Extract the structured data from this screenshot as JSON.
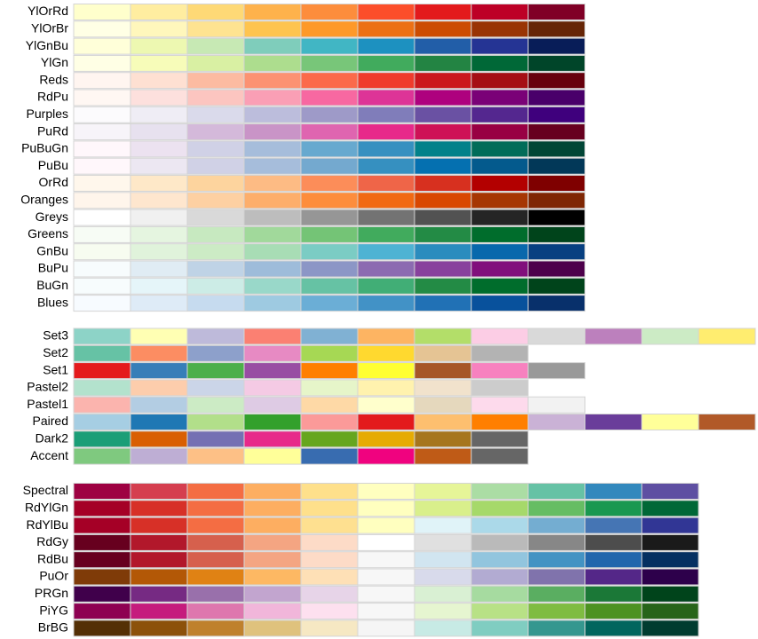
{
  "groups": [
    {
      "palettes": [
        {
          "name": "YlOrRd",
          "colors": [
            "#FFFFCC",
            "#FFEDA0",
            "#FED976",
            "#FEB24C",
            "#FD8D3C",
            "#FC4E2A",
            "#E31A1C",
            "#BD0026",
            "#800026"
          ]
        },
        {
          "name": "YlOrBr",
          "colors": [
            "#FFFFE5",
            "#FFF7BC",
            "#FEE391",
            "#FEC44F",
            "#FE9929",
            "#EC7014",
            "#CC4C02",
            "#993404",
            "#662506"
          ]
        },
        {
          "name": "YlGnBu",
          "colors": [
            "#FFFFD9",
            "#EDF8B1",
            "#C7E9B4",
            "#7FCDBB",
            "#41B6C4",
            "#1D91C0",
            "#225EA8",
            "#253494",
            "#081D58"
          ]
        },
        {
          "name": "YlGn",
          "colors": [
            "#FFFFE5",
            "#F7FCB9",
            "#D9F0A3",
            "#ADDD8E",
            "#78C679",
            "#41AB5D",
            "#238443",
            "#006837",
            "#004529"
          ]
        },
        {
          "name": "Reds",
          "colors": [
            "#FFF5F0",
            "#FEE0D2",
            "#FCBBA1",
            "#FC9272",
            "#FB6A4A",
            "#EF3B2C",
            "#CB181D",
            "#A50F15",
            "#67000D"
          ]
        },
        {
          "name": "RdPu",
          "colors": [
            "#FFF7F3",
            "#FDE0DD",
            "#FCC5C0",
            "#FA9FB5",
            "#F768A1",
            "#DD3497",
            "#AE017E",
            "#7A0177",
            "#49006A"
          ]
        },
        {
          "name": "Purples",
          "colors": [
            "#FCFBFD",
            "#EFEDF5",
            "#DADAEB",
            "#BCBDDC",
            "#9E9AC8",
            "#807DBA",
            "#6A51A3",
            "#54278F",
            "#3F007D"
          ]
        },
        {
          "name": "PuRd",
          "colors": [
            "#F7F4F9",
            "#E7E1EF",
            "#D4B9DA",
            "#C994C7",
            "#DF65B0",
            "#E7298A",
            "#CE1256",
            "#980043",
            "#67001F"
          ]
        },
        {
          "name": "PuBuGn",
          "colors": [
            "#FFF7FB",
            "#ECE2F0",
            "#D0D1E6",
            "#A6BDDB",
            "#67A9CF",
            "#3690C0",
            "#02818A",
            "#016C59",
            "#014636"
          ]
        },
        {
          "name": "PuBu",
          "colors": [
            "#FFF7FB",
            "#ECE7F2",
            "#D0D1E6",
            "#A6BDDB",
            "#74A9CF",
            "#3690C0",
            "#0570B0",
            "#045A8D",
            "#023858"
          ]
        },
        {
          "name": "OrRd",
          "colors": [
            "#FFF7EC",
            "#FEE8C8",
            "#FDD49E",
            "#FDBB84",
            "#FC8D59",
            "#EF6548",
            "#D7301F",
            "#B30000",
            "#7F0000"
          ]
        },
        {
          "name": "Oranges",
          "colors": [
            "#FFF5EB",
            "#FEE6CE",
            "#FDD0A2",
            "#FDAE6B",
            "#FD8D3C",
            "#F16913",
            "#D94801",
            "#A63603",
            "#7F2704"
          ]
        },
        {
          "name": "Greys",
          "colors": [
            "#FFFFFF",
            "#F0F0F0",
            "#D9D9D9",
            "#BDBDBD",
            "#969696",
            "#737373",
            "#525252",
            "#252525",
            "#000000"
          ]
        },
        {
          "name": "Greens",
          "colors": [
            "#F7FCF5",
            "#E5F5E0",
            "#C7E9C0",
            "#A1D99B",
            "#74C476",
            "#41AB5D",
            "#238B45",
            "#006D2C",
            "#00441B"
          ]
        },
        {
          "name": "GnBu",
          "colors": [
            "#F7FCF0",
            "#E0F3DB",
            "#CCEBC5",
            "#A8DDB5",
            "#7BCCC4",
            "#4EB3D3",
            "#2B8CBE",
            "#0868AC",
            "#084081"
          ]
        },
        {
          "name": "BuPu",
          "colors": [
            "#F7FCFD",
            "#E0ECF4",
            "#BFD3E6",
            "#9EBCDA",
            "#8C96C6",
            "#8C6BB1",
            "#88419D",
            "#810F7C",
            "#4D004B"
          ]
        },
        {
          "name": "BuGn",
          "colors": [
            "#F7FCFD",
            "#E5F5F9",
            "#CCECE6",
            "#99D8C9",
            "#66C2A4",
            "#41AE76",
            "#238B45",
            "#006D2C",
            "#00441B"
          ]
        },
        {
          "name": "Blues",
          "colors": [
            "#F7FBFF",
            "#DEEBF7",
            "#C6DBEF",
            "#9ECAE1",
            "#6BAED6",
            "#4292C6",
            "#2171B5",
            "#08519C",
            "#08306B"
          ]
        }
      ]
    },
    {
      "palettes": [
        {
          "name": "Set3",
          "colors": [
            "#8DD3C7",
            "#FFFFB3",
            "#BEBADA",
            "#FB8072",
            "#80B1D3",
            "#FDB462",
            "#B3DE69",
            "#FCCDE5",
            "#D9D9D9",
            "#BC80BD",
            "#CCEBC5",
            "#FFED6F"
          ]
        },
        {
          "name": "Set2",
          "colors": [
            "#66C2A5",
            "#FC8D62",
            "#8DA0CB",
            "#E78AC3",
            "#A6D854",
            "#FFD92F",
            "#E5C494",
            "#B3B3B3"
          ]
        },
        {
          "name": "Set1",
          "colors": [
            "#E41A1C",
            "#377EB8",
            "#4DAF4A",
            "#984EA3",
            "#FF7F00",
            "#FFFF33",
            "#A65628",
            "#F781BF",
            "#999999"
          ]
        },
        {
          "name": "Pastel2",
          "colors": [
            "#B3E2CD",
            "#FDCDAC",
            "#CBD5E8",
            "#F4CAE4",
            "#E6F5C9",
            "#FFF2AE",
            "#F1E2CC",
            "#CCCCCC"
          ]
        },
        {
          "name": "Pastel1",
          "colors": [
            "#FBB4AE",
            "#B3CDE3",
            "#CCEBC5",
            "#DECBE4",
            "#FED9A6",
            "#FFFFCC",
            "#E5D8BD",
            "#FDDAEC",
            "#F2F2F2"
          ]
        },
        {
          "name": "Paired",
          "colors": [
            "#A6CEE3",
            "#1F78B4",
            "#B2DF8A",
            "#33A02C",
            "#FB9A99",
            "#E31A1C",
            "#FDBF6F",
            "#FF7F00",
            "#CAB2D6",
            "#6A3D9A",
            "#FFFF99",
            "#B15928"
          ]
        },
        {
          "name": "Dark2",
          "colors": [
            "#1B9E77",
            "#D95F02",
            "#7570B3",
            "#E7298A",
            "#66A61E",
            "#E6AB02",
            "#A6761D",
            "#666666"
          ]
        },
        {
          "name": "Accent",
          "colors": [
            "#7FC97F",
            "#BEAED4",
            "#FDC086",
            "#FFFF99",
            "#386CB0",
            "#F0027F",
            "#BF5B17",
            "#666666"
          ]
        }
      ]
    },
    {
      "palettes": [
        {
          "name": "Spectral",
          "colors": [
            "#9E0142",
            "#D53E4F",
            "#F46D43",
            "#FDAE61",
            "#FEE08B",
            "#FFFFBF",
            "#E6F598",
            "#ABDDA4",
            "#66C2A5",
            "#3288BD",
            "#5E4FA2"
          ]
        },
        {
          "name": "RdYlGn",
          "colors": [
            "#A50026",
            "#D73027",
            "#F46D43",
            "#FDAE61",
            "#FEE08B",
            "#FFFFBF",
            "#D9EF8B",
            "#A6D96A",
            "#66BD63",
            "#1A9850",
            "#006837"
          ]
        },
        {
          "name": "RdYlBu",
          "colors": [
            "#A50026",
            "#D73027",
            "#F46D43",
            "#FDAE61",
            "#FEE090",
            "#FFFFBF",
            "#E0F3F8",
            "#ABD9E9",
            "#74ADD1",
            "#4575B4",
            "#313695"
          ]
        },
        {
          "name": "RdGy",
          "colors": [
            "#67001F",
            "#B2182B",
            "#D6604D",
            "#F4A582",
            "#FDDBC7",
            "#FFFFFF",
            "#E0E0E0",
            "#BABABA",
            "#878787",
            "#4D4D4D",
            "#1A1A1A"
          ]
        },
        {
          "name": "RdBu",
          "colors": [
            "#67001F",
            "#B2182B",
            "#D6604D",
            "#F4A582",
            "#FDDBC7",
            "#F7F7F7",
            "#D1E5F0",
            "#92C5DE",
            "#4393C3",
            "#2166AC",
            "#053061"
          ]
        },
        {
          "name": "PuOr",
          "colors": [
            "#7F3B08",
            "#B35806",
            "#E08214",
            "#FDB863",
            "#FEE0B6",
            "#F7F7F7",
            "#D8DAEB",
            "#B2ABD2",
            "#8073AC",
            "#542788",
            "#2D004B"
          ]
        },
        {
          "name": "PRGn",
          "colors": [
            "#40004B",
            "#762A83",
            "#9970AB",
            "#C2A5CF",
            "#E7D4E8",
            "#F7F7F7",
            "#D9F0D3",
            "#A6DBA0",
            "#5AAE61",
            "#1B7837",
            "#00441B"
          ]
        },
        {
          "name": "PiYG",
          "colors": [
            "#8E0152",
            "#C51B7D",
            "#DE77AE",
            "#F1B6DA",
            "#FDE0EF",
            "#F7F7F7",
            "#E6F5D0",
            "#B8E186",
            "#7FBC41",
            "#4D9221",
            "#276419"
          ]
        },
        {
          "name": "BrBG",
          "colors": [
            "#543005",
            "#8C510A",
            "#BF812D",
            "#DFC27D",
            "#F6E8C3",
            "#F5F5F5",
            "#C7EAE5",
            "#80CDC1",
            "#35978F",
            "#01665E",
            "#003C30"
          ]
        }
      ]
    }
  ]
}
